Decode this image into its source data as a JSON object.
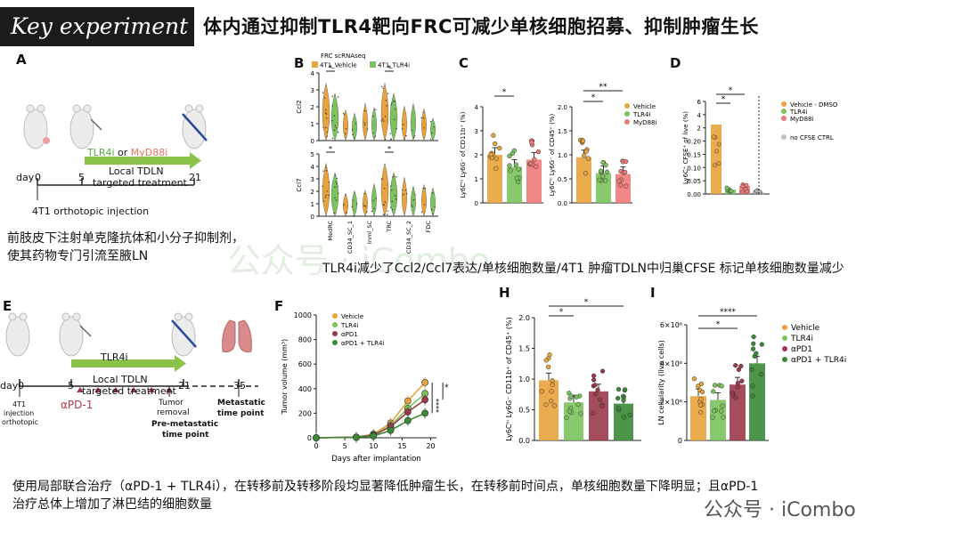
{
  "header": {
    "badge": "Key experiment",
    "title": "体内通过抑制TLR4靶向FRC可减少单核细胞招募、抑制肿瘤生长"
  },
  "panels": {
    "A": "A",
    "B": "B",
    "C": "C",
    "D": "D",
    "E": "E",
    "F": "F",
    "H": "H",
    "I": "I"
  },
  "panelA": {
    "drug_tlr4i": "TLR4i",
    "drug_or": " or ",
    "drug_myd88i": "MyD88i",
    "treatment_line1": "Local TDLN",
    "treatment_line2": "targeted treatment",
    "day_label": "day",
    "days": [
      "0",
      "5",
      "21"
    ],
    "injection": "4T1 orthotopic injection"
  },
  "captions": {
    "a_line1": "前肢皮下注射单克隆抗体和小分子抑制剂，",
    "a_line2": "使其药物专门引流至腋LN",
    "bcd": "TLR4i减少了Ccl2/Ccl7表达/单核细胞数量/4T1 肿瘤TDLN中归巢CFSE 标记单核细胞数量减少",
    "bottom_line1": "使用局部联合治疗（αPD-1 + TLR4i），在转移前及转移阶段均显著降低肿瘤生长，在转移前时间点，单核细胞数量下降明显；且αPD-1",
    "bottom_line2": "治疗总体上增加了淋巴结的细胞数量"
  },
  "panelE": {
    "drug": "TLR4i",
    "treatment_line1": "Local TDLN",
    "treatment_line2": "targeted treatment",
    "day_label": "day",
    "days": [
      "0",
      "5",
      "21",
      "35"
    ],
    "apd1": "αPD-1",
    "inj_line1": "4T1",
    "inj_line2": "injection",
    "inj_line3": "orthotopic",
    "tumor_line1": "Tumor",
    "tumor_line2": "removal",
    "premeta_line1": "Pre-metastatic",
    "premeta_line2": "time point",
    "meta_line1": "Metastatic",
    "meta_line2": "time point"
  },
  "watermark": {
    "center": "公众号 · iCombo",
    "corner": "公众号 · iCombo"
  },
  "colors": {
    "vehicle": "#e8a33c",
    "tlr4i": "#7cc35e",
    "myd88i": "#f07a7a",
    "apd1": "#9b3a4a",
    "combo": "#3a8a36",
    "banner_bg": "#1b1b1b",
    "watermark": "#cfe6cc"
  },
  "chart_data": [
    {
      "id": "B",
      "type": "violin",
      "title": "FRC scRNAseq",
      "legend": [
        "4T1_Vehicle",
        "4T1_TLR4i"
      ],
      "categories": [
        "MedRC",
        "CD34_SC_1",
        "Inml_SC",
        "TRC",
        "CD34_SC_2",
        "FDC"
      ],
      "panels": [
        {
          "ylabel": "Ccl2",
          "yticks": [
            "0",
            "1",
            "2",
            "3",
            "4"
          ],
          "ylim": [
            0,
            4.5
          ]
        },
        {
          "ylabel": "Ccl7",
          "yticks": [
            "0",
            "1",
            "2",
            "3",
            "4",
            "5"
          ],
          "ylim": [
            0,
            5.5
          ]
        }
      ],
      "significance": [
        "*",
        "*",
        "*",
        "*"
      ]
    },
    {
      "id": "C",
      "type": "bar",
      "legend": [
        "Vehicle",
        "TLR4i",
        "MyD88i"
      ],
      "subplots": [
        {
          "ylabel": "Ly6Cʰⁱ Ly6G⁻ of CD11b⁺ (%)",
          "yticks": [
            "0",
            "1",
            "2",
            "3",
            "4"
          ],
          "ylim": [
            0,
            4
          ],
          "values": [
            2.0,
            1.5,
            1.8
          ],
          "sig": [
            "*"
          ]
        },
        {
          "ylabel": "Ly6Cʰⁱ Ly6G⁻ of CD45⁺ (%)",
          "yticks": [
            "0.0",
            "0.5",
            "1.0",
            "1.5",
            "2.0"
          ],
          "ylim": [
            0,
            2
          ],
          "values": [
            0.95,
            0.62,
            0.6
          ],
          "sig": [
            "**",
            "*"
          ]
        }
      ]
    },
    {
      "id": "D",
      "type": "bar",
      "ylabel": "Ly6C⁺ CFSE⁺ of live (%)",
      "yticks": [
        "0.00",
        "0.05",
        "0.10",
        "0.15",
        "0.20",
        "2",
        "4",
        "6"
      ],
      "legend": [
        "Vehicle - DMSO",
        "TLR4i",
        "MyD88i",
        "no CFSE CTRL"
      ],
      "values": [
        1.5,
        0.03,
        0.06,
        0.005
      ],
      "sig": [
        "*",
        "*"
      ]
    },
    {
      "id": "F",
      "type": "line",
      "xlabel": "Days after implantation",
      "ylabel": "Tumor volume (mm³)",
      "xticks": [
        "0",
        "5",
        "10",
        "15",
        "20"
      ],
      "yticks": [
        "0",
        "200",
        "400",
        "600",
        "800",
        "1000"
      ],
      "xlim": [
        0,
        21
      ],
      "ylim": [
        0,
        1000
      ],
      "x": [
        0,
        7,
        10,
        13,
        16,
        19
      ],
      "series": [
        {
          "name": "Vehicle",
          "values": [
            0,
            5,
            30,
            120,
            300,
            450
          ]
        },
        {
          "name": "TLR4i",
          "values": [
            0,
            5,
            25,
            100,
            240,
            360
          ]
        },
        {
          "name": "αPD1",
          "values": [
            0,
            5,
            22,
            90,
            210,
            310
          ]
        },
        {
          "name": "αPD1 + TLR4i",
          "values": [
            0,
            3,
            15,
            60,
            140,
            200
          ]
        }
      ],
      "sig": [
        "****",
        "*"
      ]
    },
    {
      "id": "H",
      "type": "bar",
      "ylabel": "Ly6Cʰⁱ Ly6G⁻ CD11b⁺ of CD45⁺ (%)",
      "yticks": [
        "0.0",
        "0.5",
        "1.0",
        "1.5",
        "2.0"
      ],
      "ylim": [
        0,
        2
      ],
      "categories": [
        "Vehicle",
        "TLR4i",
        "αPD1",
        "αPD1 + TLR4i"
      ],
      "values": [
        0.98,
        0.62,
        0.8,
        0.6
      ],
      "sig": [
        "*",
        "*"
      ]
    },
    {
      "id": "I",
      "type": "bar",
      "ylabel": "LN cellularity (live cells)",
      "yticks": [
        "0",
        "2×10⁶",
        "4×10⁶",
        "6×10⁶"
      ],
      "ylim": [
        0,
        6
      ],
      "legend": [
        "Vehicle",
        "TLR4i",
        "αPD1",
        "αPD1 + TLR4i"
      ],
      "values": [
        2.3,
        2.1,
        2.9,
        4.0
      ],
      "sig": [
        "****",
        "*"
      ]
    }
  ]
}
